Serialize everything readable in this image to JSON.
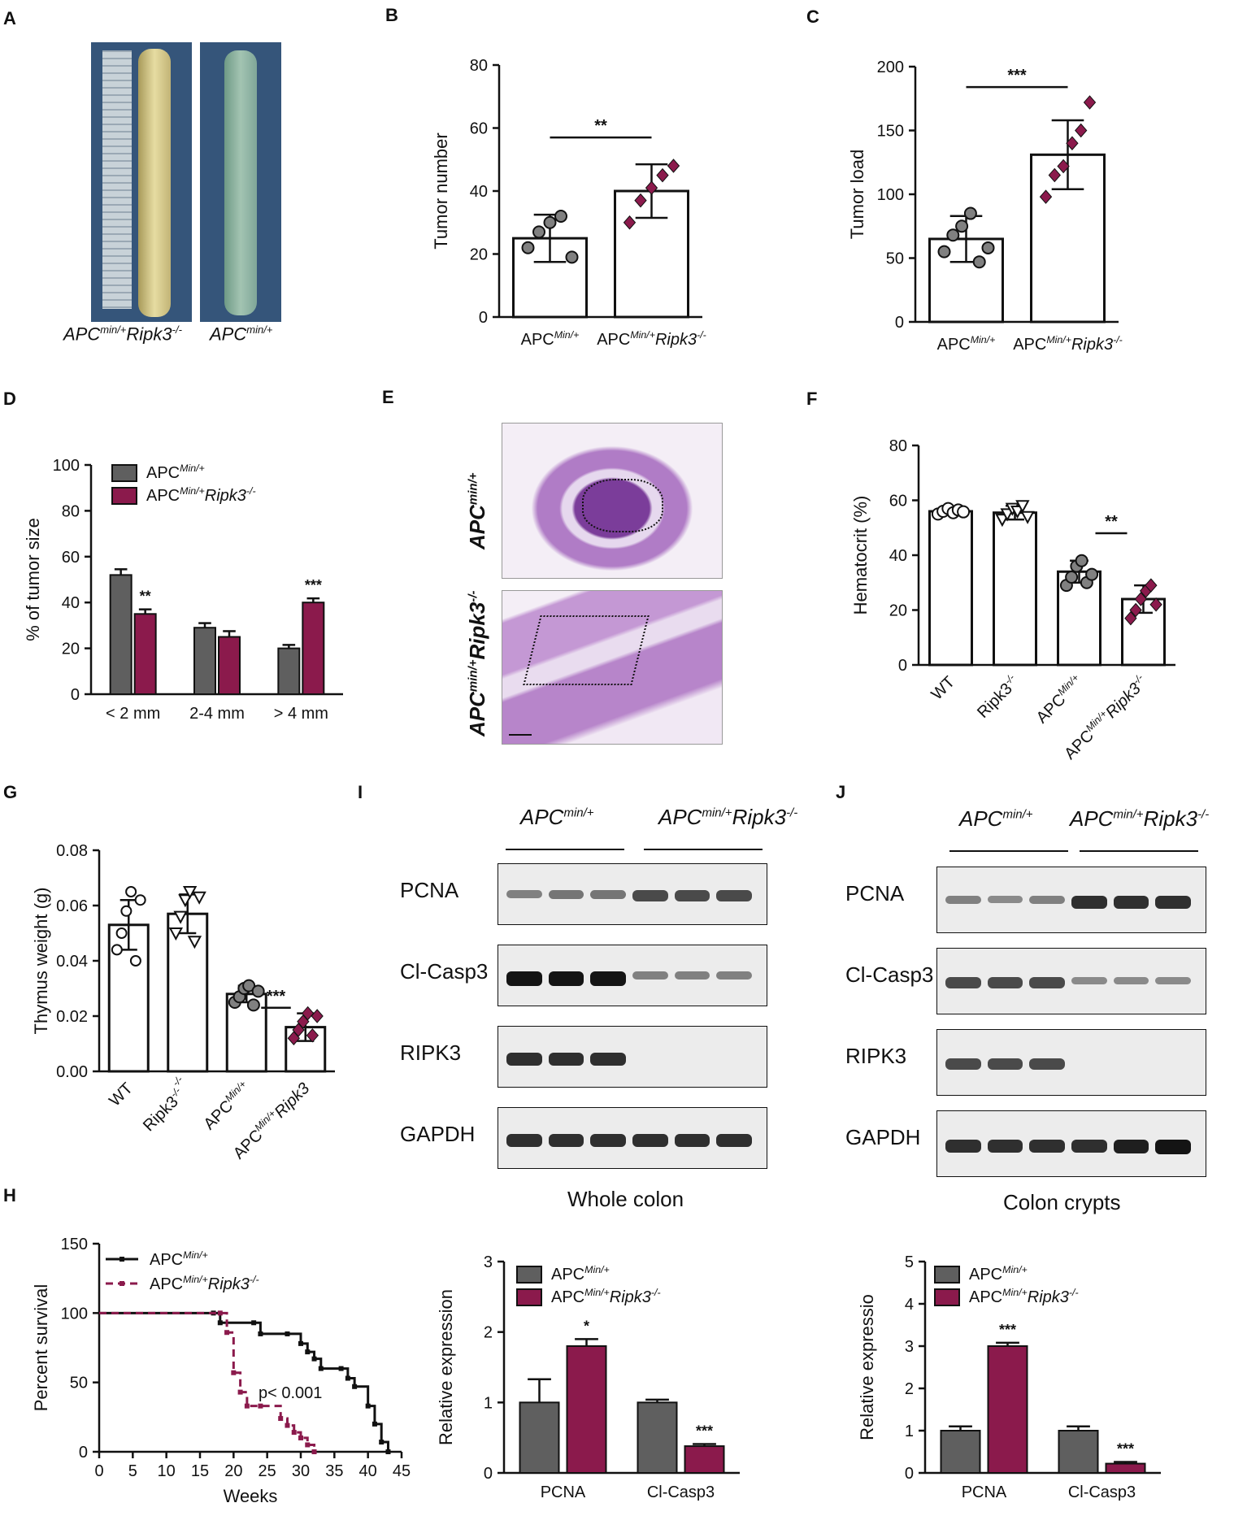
{
  "panel_labels": {
    "A": "A",
    "B": "B",
    "C": "C",
    "D": "D",
    "E": "E",
    "F": "F",
    "G": "G",
    "H": "H",
    "I": "I",
    "J": "J"
  },
  "colors": {
    "gray": "#5f5f5f",
    "maroon": "#8b1a4c",
    "open": "#ffffff",
    "black": "#111111"
  },
  "panel_A": {
    "caption_left": "APC",
    "caption_left_sup": "min/+",
    "caption_left_tail": "Ripk3",
    "caption_left_tail_sup": "-/-",
    "caption_right": "APC",
    "caption_right_sup": "min/+"
  },
  "panel_E": {
    "label_top": "APC",
    "label_top_sup": "min/+",
    "label_bottom": "APC",
    "label_bottom_sup": "min/+",
    "label_bottom_tail": "Ripk3",
    "label_bottom_tail_sup": "-/-"
  },
  "panel_I": {
    "group1": "APC",
    "group1_sup": "min/+",
    "group2": "APC",
    "group2_sup": "min/+",
    "group2_tail": "Ripk3",
    "group2_tail_sup": "-/-",
    "bands": [
      "PCNA",
      "Cl-Casp3",
      "RIPK3",
      "GAPDH"
    ],
    "title": "Whole colon"
  },
  "panel_J": {
    "group1": "APC",
    "group1_sup": "min/+",
    "group2": "APC",
    "group2_sup": "min/+",
    "group2_tail": "Ripk3",
    "group2_tail_sup": "-/-",
    "bands": [
      "PCNA",
      "Cl-Casp3",
      "RIPK3",
      "GAPDH"
    ],
    "title": "Colon crypts"
  },
  "chart_data": [
    {
      "id": "B",
      "type": "bar",
      "ylabel": "Tumor number",
      "ylim": [
        0,
        80
      ],
      "yticks": [
        0,
        20,
        40,
        60,
        80
      ],
      "categories": [
        "APC",
        "APC"
      ],
      "category_sups": [
        "Min/+",
        "Min/+"
      ],
      "category_tails": [
        "",
        "Ripk3"
      ],
      "category_tail_sups": [
        "",
        "-/-"
      ],
      "values": [
        25,
        40
      ],
      "errors": [
        7.5,
        8.5
      ],
      "points": [
        [
          22,
          27,
          30,
          32,
          19
        ],
        [
          30,
          37,
          41,
          45,
          48
        ]
      ],
      "significance": "**"
    },
    {
      "id": "C",
      "type": "bar",
      "ylabel": "Tumor load",
      "ylim": [
        0,
        200
      ],
      "yticks": [
        0,
        50,
        100,
        150,
        200
      ],
      "categories": [
        "APC",
        "APC"
      ],
      "category_sups": [
        "Min/+",
        "Min/+"
      ],
      "category_tails": [
        "",
        "Ripk3"
      ],
      "category_tail_sups": [
        "",
        "-/-"
      ],
      "values": [
        65,
        131
      ],
      "errors": [
        18,
        27
      ],
      "points": [
        [
          55,
          68,
          75,
          85,
          47,
          58
        ],
        [
          98,
          115,
          122,
          140,
          150,
          172
        ]
      ],
      "significance": "***"
    },
    {
      "id": "D",
      "type": "bar",
      "ylabel": "% of tumor size",
      "ylim": [
        0,
        100
      ],
      "yticks": [
        0,
        20,
        40,
        60,
        80,
        100
      ],
      "categories": [
        "< 2 mm",
        "2-4 mm",
        "> 4 mm"
      ],
      "series": [
        {
          "name": "APC",
          "sup": "Min/+",
          "tail": "",
          "tail_sup": "",
          "values": [
            52,
            29,
            20
          ],
          "errors": [
            2.5,
            2,
            1.5
          ]
        },
        {
          "name": "APC",
          "sup": "Min/+",
          "tail": "Ripk3",
          "tail_sup": "-/-",
          "values": [
            35,
            25,
            40
          ],
          "errors": [
            2,
            2.5,
            1.8
          ]
        }
      ],
      "significance": [
        "**",
        "",
        "***"
      ]
    },
    {
      "id": "F",
      "type": "bar",
      "ylabel": "Hematocrit (%)",
      "ylim": [
        0,
        80
      ],
      "yticks": [
        0,
        20,
        40,
        60,
        80
      ],
      "categories": [
        "WT",
        "Ripk3",
        "APC",
        "APC"
      ],
      "category_sups": [
        "",
        "-/-",
        "Min/+",
        "Min/+"
      ],
      "category_tails": [
        "",
        "",
        "",
        "Ripk3"
      ],
      "category_tail_sups": [
        "",
        "",
        "",
        "-/-"
      ],
      "values": [
        56,
        55.5,
        34,
        24
      ],
      "errors": [
        1,
        2.5,
        4,
        5
      ],
      "points": [
        [
          55,
          56,
          57,
          55.5,
          56.5,
          55.8
        ],
        [
          53,
          55,
          57,
          56,
          58,
          54
        ],
        [
          29,
          32,
          36,
          38,
          30,
          33
        ],
        [
          17,
          20,
          24,
          27,
          29,
          22
        ]
      ],
      "significance": "**"
    },
    {
      "id": "G",
      "type": "bar",
      "ylabel": "Thymus weight (g)",
      "ylim": [
        0,
        0.08
      ],
      "yticks": [
        "0.00",
        "0.02",
        "0.04",
        "0.06",
        "0.08"
      ],
      "categories": [
        "WT",
        "Ripk3",
        "APC",
        "APC"
      ],
      "category_sups": [
        "",
        "-/-",
        "Min/+",
        "Min/+"
      ],
      "category_tails": [
        "",
        "",
        "",
        "Ripk3"
      ],
      "category_tail_sups": [
        "",
        "-/-",
        "",
        ""
      ],
      "values": [
        0.053,
        0.057,
        0.028,
        0.016
      ],
      "errors": [
        0.009,
        0.007,
        0.003,
        0.005
      ],
      "points": [
        [
          0.044,
          0.05,
          0.058,
          0.065,
          0.04,
          0.062
        ],
        [
          0.05,
          0.056,
          0.062,
          0.065,
          0.047,
          0.063
        ],
        [
          0.025,
          0.027,
          0.03,
          0.031,
          0.024,
          0.029
        ],
        [
          0.012,
          0.015,
          0.018,
          0.021,
          0.013,
          0.02
        ]
      ],
      "significance": "***"
    },
    {
      "id": "H",
      "type": "line",
      "xlabel": "Weeks",
      "ylabel": "Percent survival",
      "xlim": [
        0,
        45
      ],
      "ylim": [
        0,
        150
      ],
      "xticks": [
        0,
        5,
        10,
        15,
        20,
        25,
        30,
        35,
        40,
        45
      ],
      "yticks": [
        0,
        50,
        100,
        150
      ],
      "annotation": "p< 0.001",
      "series": [
        {
          "name": "APC",
          "sup": "Min/+",
          "tail": "",
          "tail_sup": "",
          "style": "solid",
          "x": [
            0,
            17,
            18,
            23,
            24,
            28,
            30,
            31,
            32,
            33,
            36,
            37,
            38,
            40,
            41,
            42,
            43
          ],
          "y": [
            100,
            100,
            93,
            93,
            85,
            85,
            78,
            72,
            67,
            60,
            60,
            53,
            47,
            33,
            20,
            7,
            0
          ]
        },
        {
          "name": "APC",
          "sup": "Min/+",
          "tail": "Ripk3",
          "tail_sup": "-/-",
          "style": "dashed",
          "x": [
            0,
            18,
            19,
            20,
            21,
            22,
            24,
            27,
            28,
            29,
            30,
            31,
            32
          ],
          "y": [
            100,
            100,
            86,
            57,
            43,
            33,
            33,
            24,
            19,
            14,
            10,
            5,
            0
          ]
        }
      ]
    },
    {
      "id": "I_quant",
      "type": "bar",
      "ylabel": "Relative  expression",
      "ylim": [
        0,
        3
      ],
      "yticks": [
        0,
        1,
        2,
        3
      ],
      "categories": [
        "PCNA",
        "Cl-Casp3"
      ],
      "series": [
        {
          "name": "APC",
          "sup": "Min/+",
          "tail": "",
          "tail_sup": "",
          "values": [
            1,
            1
          ],
          "errors": [
            0.33,
            0.04
          ]
        },
        {
          "name": "APC",
          "sup": "Min/+",
          "tail": "Ripk3",
          "tail_sup": "-/-",
          "values": [
            1.8,
            0.38
          ],
          "errors": [
            0.1,
            0.03
          ]
        }
      ],
      "significance": [
        "*",
        "***"
      ]
    },
    {
      "id": "J_quant",
      "type": "bar",
      "ylabel": "Relative expressio",
      "ylim": [
        0,
        5
      ],
      "yticks": [
        0,
        1,
        2,
        3,
        4,
        5
      ],
      "categories": [
        "PCNA",
        "Cl-Casp3"
      ],
      "series": [
        {
          "name": "APC",
          "sup": "Min/+",
          "tail": "",
          "tail_sup": "",
          "values": [
            1,
            1
          ],
          "errors": [
            0.1,
            0.1
          ]
        },
        {
          "name": "APC",
          "sup": "Min/+",
          "tail": "Ripk3",
          "tail_sup": "-/-",
          "values": [
            3,
            0.22
          ],
          "errors": [
            0.08,
            0.04
          ]
        }
      ],
      "significance": [
        "***",
        "***"
      ]
    }
  ]
}
